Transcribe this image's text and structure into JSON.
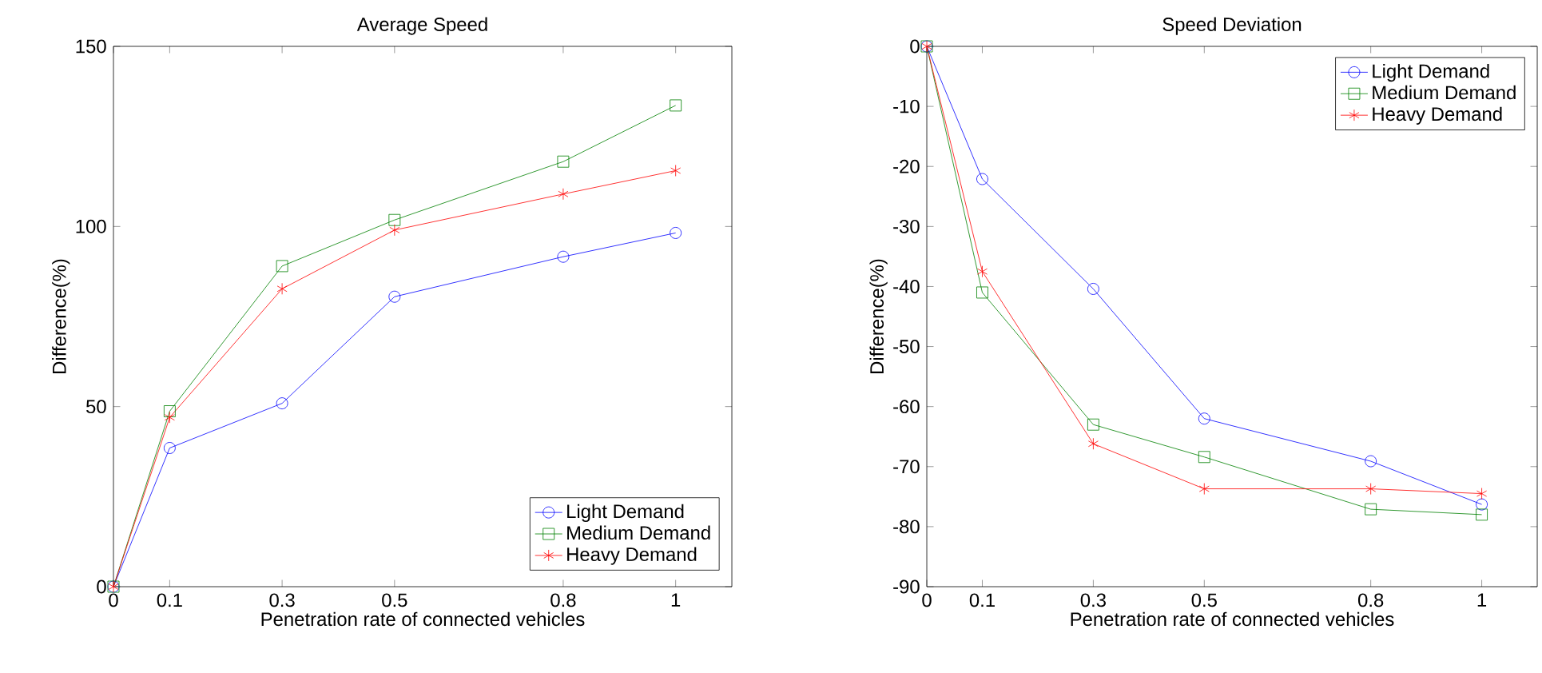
{
  "chart_data": [
    {
      "type": "line",
      "title": "Average Speed",
      "xlabel": "Penetration rate of connected vehicles",
      "ylabel": "Difference(%)",
      "x": [
        0,
        0.1,
        0.3,
        0.5,
        0.8,
        1
      ],
      "xlim": [
        0,
        1.1
      ],
      "xticks": [
        0,
        0.1,
        0.3,
        0.5,
        0.8,
        1
      ],
      "ylim": [
        0,
        150
      ],
      "yticks": [
        0,
        50,
        100,
        150
      ],
      "legend": "bottom right",
      "line_style": "solid",
      "series": [
        {
          "name": "Light Demand",
          "color": "#0000ff",
          "marker": "circle",
          "values": [
            0,
            38.5,
            50.9,
            80.5,
            91.6,
            98.2
          ]
        },
        {
          "name": "Medium Demand",
          "color": "#008000",
          "marker": "square",
          "values": [
            0,
            48.7,
            89,
            101.8,
            118,
            133.6
          ]
        },
        {
          "name": "Heavy Demand",
          "color": "#ff0000",
          "marker": "cross",
          "values": [
            0,
            47,
            82.7,
            99,
            109,
            115.5
          ]
        }
      ]
    },
    {
      "type": "line",
      "title": "Speed Deviation",
      "xlabel": "Penetration rate of connected vehicles",
      "ylabel": "Difference(%)",
      "x": [
        0,
        0.1,
        0.3,
        0.5,
        0.8,
        1
      ],
      "xlim": [
        0,
        1.1
      ],
      "xticks": [
        0,
        0.1,
        0.3,
        0.5,
        0.8,
        1
      ],
      "ylim": [
        -90,
        0
      ],
      "yticks": [
        -90,
        -80,
        -70,
        -60,
        -50,
        -40,
        -30,
        -20,
        -10,
        0
      ],
      "legend": "top right",
      "line_style": "solid",
      "series": [
        {
          "name": "Light Demand",
          "color": "#0000ff",
          "marker": "circle",
          "values": [
            0,
            -22.1,
            -40.4,
            -62,
            -69.1,
            -76.3
          ]
        },
        {
          "name": "Medium Demand",
          "color": "#008000",
          "marker": "square",
          "values": [
            0,
            -41,
            -63,
            -68.4,
            -77.1,
            -78
          ]
        },
        {
          "name": "Heavy Demand",
          "color": "#ff0000",
          "marker": "cross",
          "values": [
            0,
            -37.5,
            -66.2,
            -73.7,
            -73.7,
            -74.5
          ]
        }
      ]
    }
  ]
}
